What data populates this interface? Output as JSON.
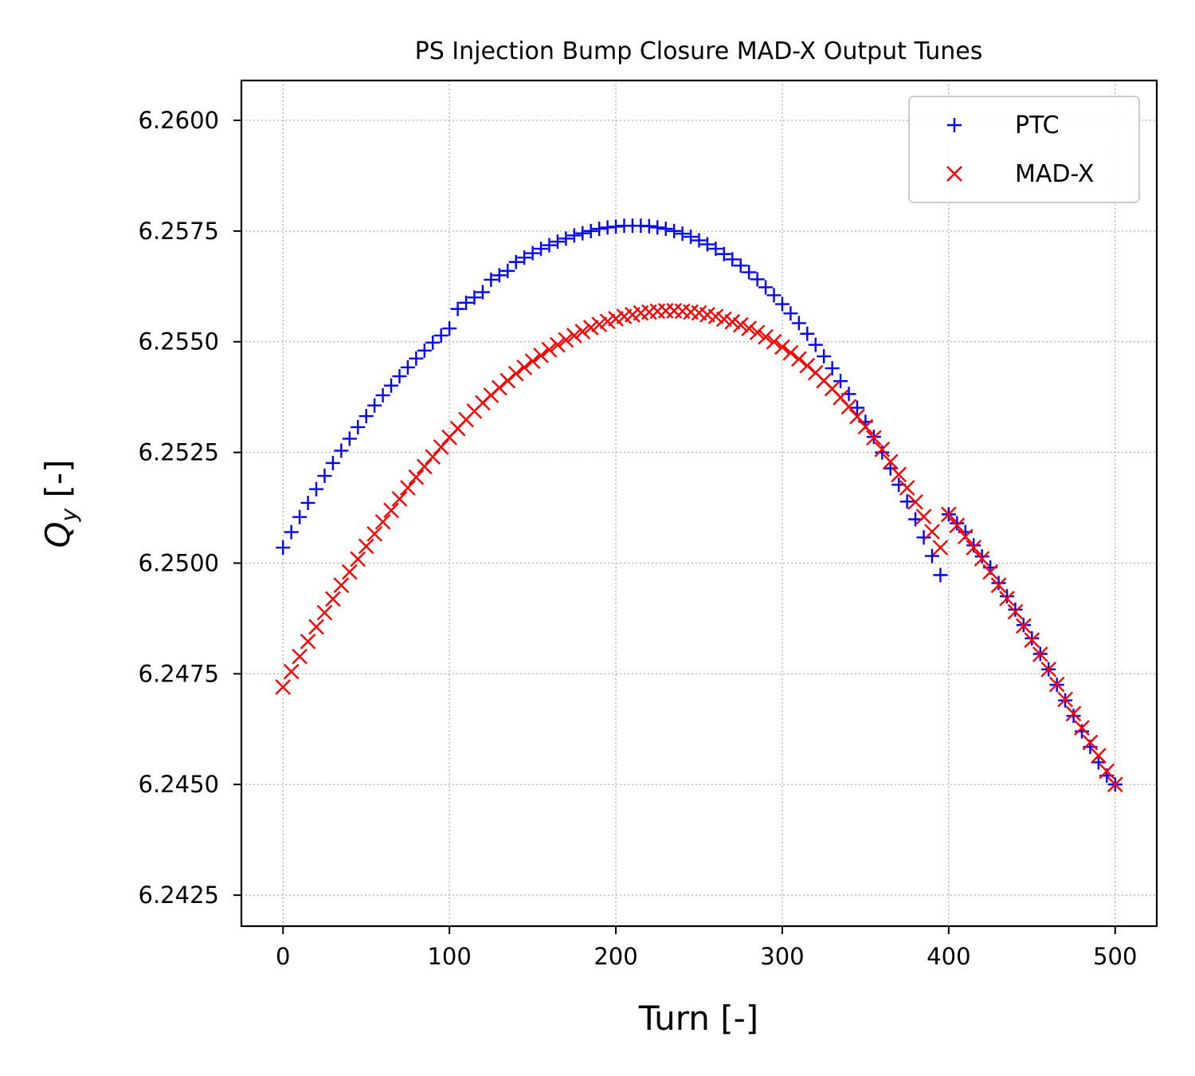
{
  "chart_data": {
    "type": "scatter",
    "title": "PS Injection Bump Closure MAD-X Output Tunes",
    "xlabel": "Turn [-]",
    "ylabel_main": "Q",
    "ylabel_sub": "y",
    "ylabel_suffix": " [-]",
    "xlim": [
      -25,
      525
    ],
    "ylim": [
      6.2418,
      6.2609
    ],
    "x_ticks": [
      0,
      100,
      200,
      300,
      400,
      500
    ],
    "x_tick_labels": [
      "0",
      "100",
      "200",
      "300",
      "400",
      "500"
    ],
    "y_ticks": [
      6.2425,
      6.245,
      6.2475,
      6.25,
      6.2525,
      6.255,
      6.2575,
      6.26
    ],
    "y_tick_labels": [
      "6.2425",
      "6.2450",
      "6.2475",
      "6.2500",
      "6.2525",
      "6.2550",
      "6.2575",
      "6.2600"
    ],
    "grid": true,
    "legend_position": "top-right",
    "series": [
      {
        "name": "PTC",
        "marker": "plus",
        "color": "#0000ff",
        "x": [
          0,
          5,
          10,
          15,
          20,
          25,
          30,
          35,
          40,
          45,
          50,
          55,
          60,
          65,
          70,
          75,
          80,
          85,
          90,
          95,
          100,
          105,
          110,
          115,
          120,
          125,
          130,
          135,
          140,
          145,
          150,
          155,
          160,
          165,
          170,
          175,
          180,
          185,
          190,
          195,
          200,
          205,
          210,
          215,
          220,
          225,
          230,
          235,
          240,
          245,
          250,
          255,
          260,
          265,
          270,
          275,
          280,
          285,
          290,
          295,
          300,
          305,
          310,
          315,
          320,
          325,
          330,
          335,
          340,
          345,
          350,
          355,
          360,
          365,
          370,
          375,
          380,
          385,
          390,
          395,
          400,
          405,
          410,
          415,
          420,
          425,
          430,
          435,
          440,
          445,
          450,
          455,
          460,
          465,
          470,
          475,
          480,
          485,
          490,
          495,
          500
        ],
        "y": [
          6.25035,
          6.2507,
          6.25104,
          6.25136,
          6.25167,
          6.25197,
          6.25226,
          6.25254,
          6.25281,
          6.25307,
          6.25332,
          6.25356,
          6.25379,
          6.25401,
          6.25422,
          6.25442,
          6.25462,
          6.2548,
          6.25498,
          6.25514,
          6.2553,
          6.25574,
          6.25588,
          6.256,
          6.25612,
          6.2564,
          6.2565,
          6.2566,
          6.2568,
          6.2569,
          6.257,
          6.2571,
          6.25718,
          6.25726,
          6.25733,
          6.2574,
          6.25745,
          6.2575,
          6.25755,
          6.25758,
          6.2576,
          6.25762,
          6.25762,
          6.25762,
          6.25761,
          6.25758,
          6.25755,
          6.2575,
          6.25744,
          6.25737,
          6.25729,
          6.2572,
          6.2571,
          6.25698,
          6.25686,
          6.25672,
          6.25657,
          6.25641,
          6.25623,
          6.25605,
          6.25585,
          6.25564,
          6.25542,
          6.25518,
          6.25493,
          6.25467,
          6.2544,
          6.25411,
          6.25382,
          6.25351,
          6.25319,
          6.25285,
          6.2525,
          6.25214,
          6.25177,
          6.25139,
          6.25099,
          6.25058,
          6.25016,
          6.24973,
          6.2511,
          6.2509,
          6.2507,
          6.2504,
          6.25015,
          6.2499,
          6.24955,
          6.24925,
          6.24895,
          6.2486,
          6.2483,
          6.24795,
          6.2476,
          6.24725,
          6.2469,
          6.24655,
          6.2462,
          6.24585,
          6.2455,
          6.2452,
          6.245
        ]
      },
      {
        "name": "MAD-X",
        "marker": "x",
        "color": "#ff0000",
        "x": [
          0,
          5,
          10,
          15,
          20,
          25,
          30,
          35,
          40,
          45,
          50,
          55,
          60,
          65,
          70,
          75,
          80,
          85,
          90,
          95,
          100,
          105,
          110,
          115,
          120,
          125,
          130,
          135,
          140,
          145,
          150,
          155,
          160,
          165,
          170,
          175,
          180,
          185,
          190,
          195,
          200,
          205,
          210,
          215,
          220,
          225,
          230,
          235,
          240,
          245,
          250,
          255,
          260,
          265,
          270,
          275,
          280,
          285,
          290,
          295,
          300,
          305,
          310,
          315,
          320,
          325,
          330,
          335,
          340,
          345,
          350,
          355,
          360,
          365,
          370,
          375,
          380,
          385,
          390,
          395,
          400,
          405,
          410,
          415,
          420,
          425,
          430,
          435,
          440,
          445,
          450,
          455,
          460,
          465,
          470,
          475,
          480,
          485,
          490,
          495,
          500
        ],
        "y": [
          6.2472,
          6.24755,
          6.24789,
          6.24823,
          6.24856,
          6.24888,
          6.24919,
          6.2495,
          6.2498,
          6.25009,
          6.25038,
          6.25066,
          6.25093,
          6.25119,
          6.25145,
          6.2517,
          6.25194,
          6.25218,
          6.2524,
          6.25262,
          6.25284,
          6.25304,
          6.25324,
          6.25343,
          6.25362,
          6.25379,
          6.25396,
          6.25412,
          6.25428,
          6.25442,
          6.25456,
          6.25469,
          6.25482,
          6.25493,
          6.25504,
          6.25514,
          6.25523,
          6.25532,
          6.25539,
          6.25546,
          6.25552,
          6.25557,
          6.25561,
          6.25565,
          6.25567,
          6.25569,
          6.2557,
          6.2557,
          6.25569,
          6.25567,
          6.25565,
          6.25561,
          6.25557,
          6.25551,
          6.25545,
          6.25538,
          6.2553,
          6.25521,
          6.25511,
          6.255,
          6.25488,
          6.25475,
          6.25461,
          6.25446,
          6.2543,
          6.25412,
          6.25394,
          6.25374,
          6.25353,
          6.25331,
          6.25308,
          6.25283,
          6.25257,
          6.25229,
          6.252,
          6.2517,
          6.25138,
          6.25105,
          6.25071,
          6.25035,
          6.2511,
          6.25085,
          6.2506,
          6.25035,
          6.2501,
          6.2498,
          6.2495,
          6.2492,
          6.2489,
          6.24858,
          6.24826,
          6.24794,
          6.2476,
          6.24726,
          6.24692,
          6.2466,
          6.24628,
          6.24595,
          6.24565,
          6.2453,
          6.245
        ]
      }
    ]
  }
}
